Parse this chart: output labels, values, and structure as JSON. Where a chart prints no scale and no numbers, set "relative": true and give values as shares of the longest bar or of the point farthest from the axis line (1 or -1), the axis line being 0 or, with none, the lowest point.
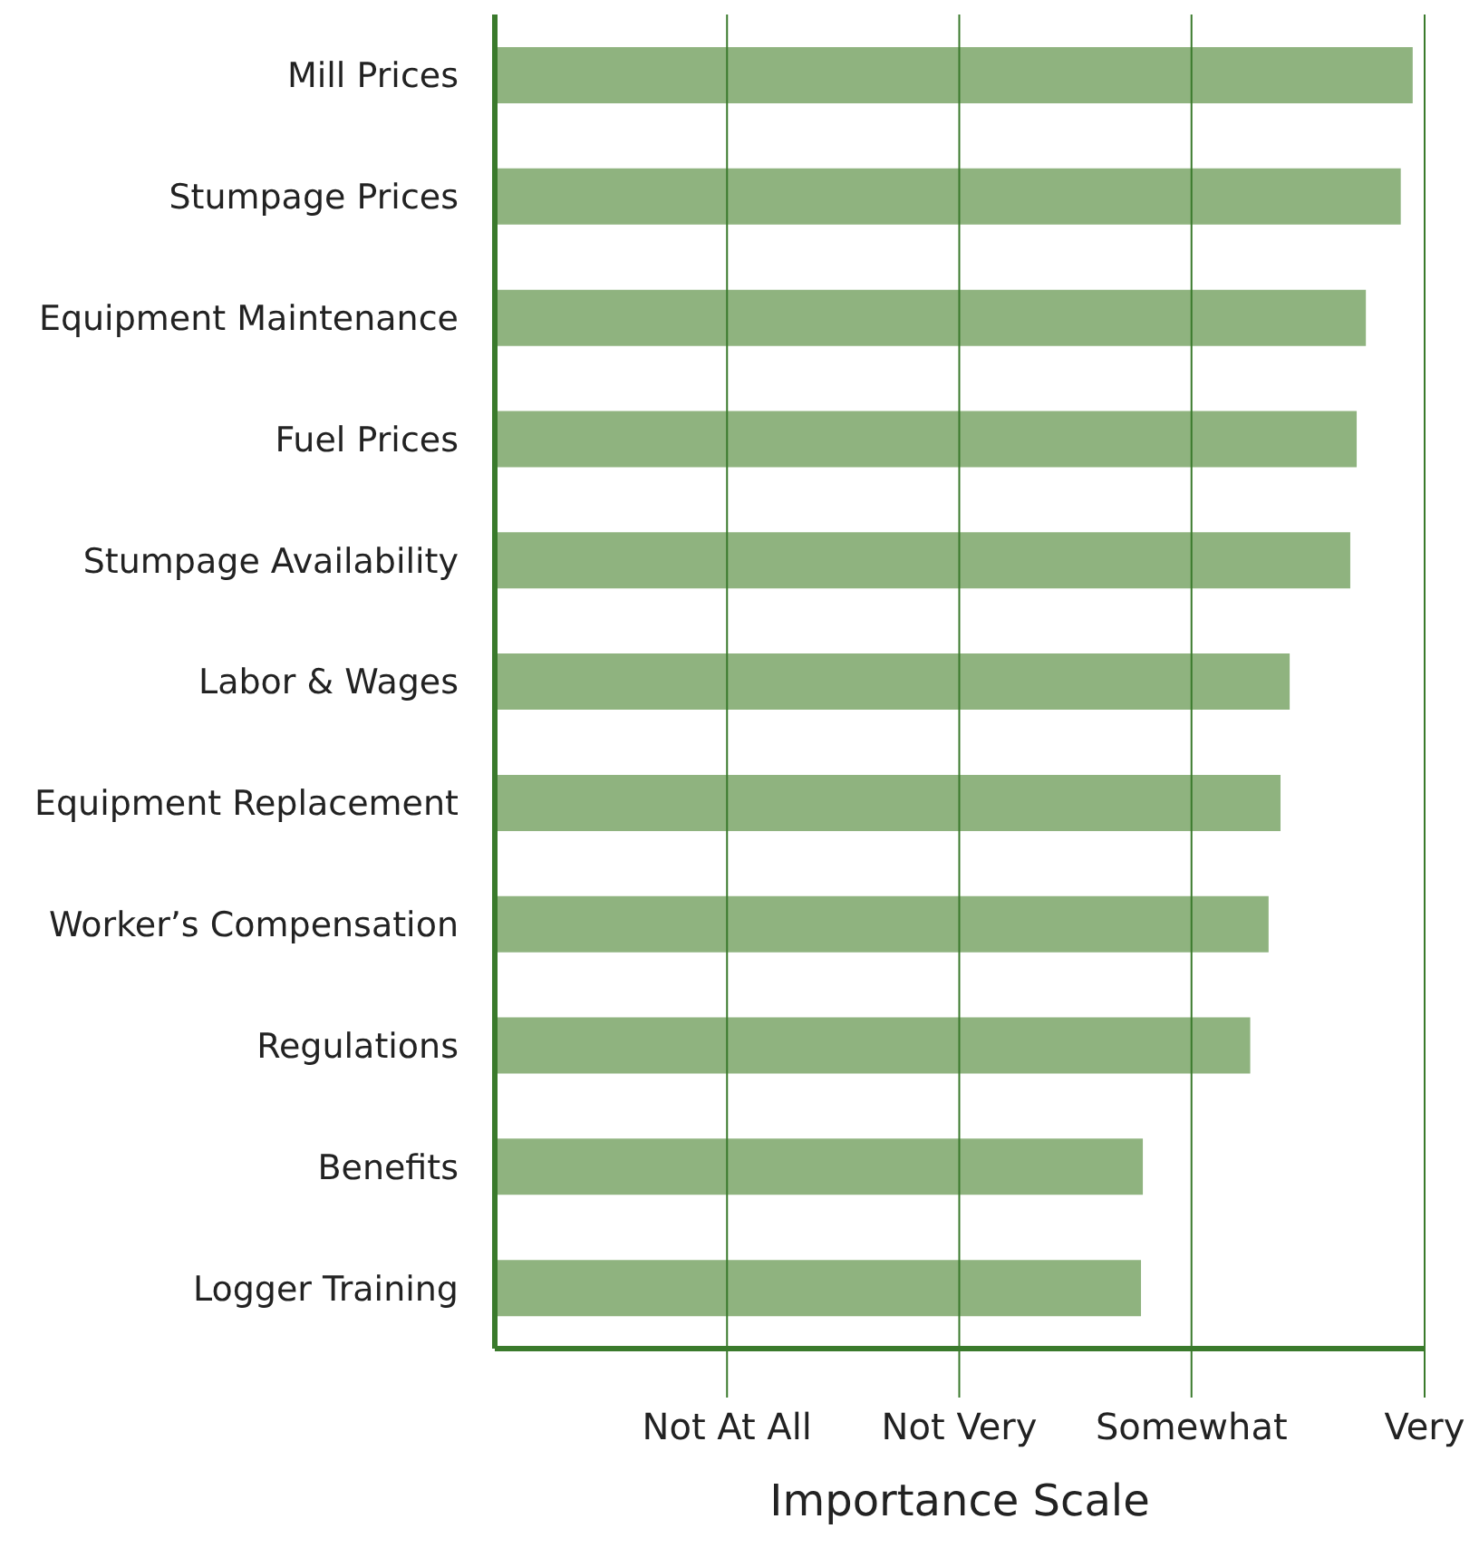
{
  "chart_data": {
    "type": "bar",
    "orientation": "horizontal",
    "relative": true,
    "xlabel": "Importance Scale",
    "categories": [
      "Mill Prices",
      "Stumpage Prices",
      "Equipment Maintenance",
      "Fuel Prices",
      "Stumpage Availability",
      "Labor & Wages",
      "Equipment Replacement",
      "Worker’s Compensation",
      "Regulations",
      "Benefits",
      "Logger Training"
    ],
    "values": [
      1,
      0.987,
      0.949,
      0.939,
      0.932,
      0.866,
      0.856,
      0.843,
      0.823,
      0.706,
      0.704
    ],
    "color": "#8fb37f",
    "ref_lines": [
      {
        "axis": "x",
        "value": 0.253,
        "label": "Not At All",
        "color": "#3a7a2c"
      },
      {
        "axis": "x",
        "value": 0.506,
        "label": "Not Very",
        "color": "#3a7a2c"
      },
      {
        "axis": "x",
        "value": 0.759,
        "label": "Somewhat",
        "color": "#3a7a2c"
      },
      {
        "axis": "x",
        "value": 1.013,
        "label": "Very",
        "color": "#3a7a2c"
      }
    ],
    "legend": false
  }
}
